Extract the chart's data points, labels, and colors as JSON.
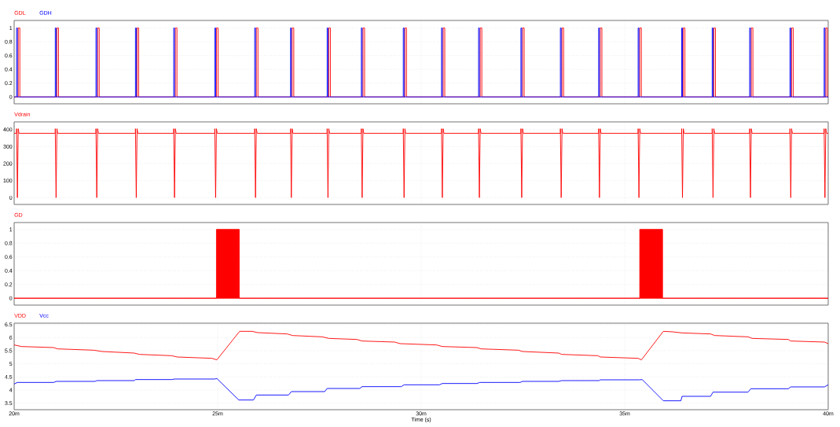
{
  "chart_data": [
    {
      "type": "line",
      "legend": "top left",
      "grid": true,
      "tick_labels": "y",
      "xlim": [
        20,
        40
      ],
      "xticks": [
        {
          "value": 20,
          "label": null
        },
        {
          "value": 25,
          "label": null
        },
        {
          "value": 30,
          "label": null
        },
        {
          "value": 35,
          "label": null
        },
        {
          "value": 40,
          "label": null
        }
      ],
      "ylim": [
        -0.1,
        1.11
      ],
      "yticks": [
        0,
        0.2,
        0.4,
        0.6,
        0.8,
        1
      ],
      "series": [
        {
          "name": "GDL",
          "color": "#ff0000",
          "x": [
            20,
            20.1,
            20.1,
            20.14,
            20.14,
            21.05,
            21.05,
            21.09,
            21.09,
            22.05,
            22.05,
            22.09,
            22.09,
            23.02,
            23.02,
            23.06,
            23.06,
            23.96,
            23.96,
            24,
            24,
            24.97,
            24.97,
            25.01,
            25.01,
            25.95,
            25.95,
            25.99,
            25.99,
            26.83,
            26.83,
            26.87,
            26.87,
            27.73,
            27.73,
            27.77,
            27.77,
            28.57,
            28.57,
            28.61,
            28.61,
            29.6,
            29.6,
            29.64,
            29.64,
            30.54,
            30.54,
            30.58,
            30.58,
            31.45,
            31.45,
            31.49,
            31.49,
            32.49,
            32.49,
            32.53,
            32.53,
            33.46,
            33.46,
            33.5,
            33.5,
            34.4,
            34.4,
            34.44,
            34.44,
            35.37,
            35.37,
            35.41,
            35.41,
            36.44,
            36.44,
            36.48,
            36.48,
            37.19,
            37.19,
            37.23,
            37.23,
            38.11,
            38.11,
            38.15,
            38.15,
            39.1,
            39.1,
            39.14,
            39.14,
            39.94,
            39.94,
            39.98,
            39.98,
            40
          ],
          "values": [
            0,
            0,
            1,
            1,
            0,
            0,
            1,
            1,
            0,
            0,
            1,
            1,
            0,
            0,
            1,
            1,
            0,
            0,
            1,
            1,
            0,
            0,
            1,
            1,
            0,
            0,
            1,
            1,
            0,
            0,
            1,
            1,
            0,
            0,
            1,
            1,
            0,
            0,
            1,
            1,
            0,
            0,
            1,
            1,
            0,
            0,
            1,
            1,
            0,
            0,
            1,
            1,
            0,
            0,
            1,
            1,
            0,
            0,
            1,
            1,
            0,
            0,
            1,
            1,
            0,
            0,
            1,
            1,
            0,
            0,
            1,
            1,
            0,
            0,
            1,
            1,
            0,
            0,
            1,
            1,
            0,
            0,
            1,
            1,
            0,
            0,
            1,
            1,
            0,
            0
          ]
        },
        {
          "name": "GDH",
          "color": "#0000ff",
          "x": [
            20,
            20.06,
            20.06,
            20.08,
            20.08,
            21.01,
            21.01,
            21.03,
            21.03,
            22.01,
            22.01,
            22.03,
            22.03,
            22.98,
            22.98,
            23,
            23,
            23.92,
            23.92,
            23.94,
            23.94,
            24.93,
            24.93,
            24.95,
            24.95,
            25.91,
            25.91,
            25.93,
            25.93,
            26.79,
            26.79,
            26.81,
            26.81,
            27.69,
            27.69,
            27.71,
            27.71,
            28.53,
            28.53,
            28.55,
            28.55,
            29.56,
            29.56,
            29.58,
            29.58,
            30.5,
            30.5,
            30.52,
            30.52,
            31.41,
            31.41,
            31.43,
            31.43,
            32.45,
            32.45,
            32.47,
            32.47,
            33.42,
            33.42,
            33.44,
            33.44,
            34.36,
            34.36,
            34.38,
            34.38,
            35.33,
            35.33,
            35.35,
            35.35,
            36.4,
            36.4,
            36.42,
            36.42,
            37.15,
            37.15,
            37.17,
            37.17,
            38.07,
            38.07,
            38.09,
            38.09,
            39.06,
            39.06,
            39.08,
            39.08,
            39.9,
            39.9,
            39.92,
            39.92,
            40
          ],
          "values": [
            0,
            0,
            1,
            1,
            0,
            0,
            1,
            1,
            0,
            0,
            1,
            1,
            0,
            0,
            1,
            1,
            0,
            0,
            1,
            1,
            0,
            0,
            1,
            1,
            0,
            0,
            1,
            1,
            0,
            0,
            1,
            1,
            0,
            0,
            1,
            1,
            0,
            0,
            1,
            1,
            0,
            0,
            1,
            1,
            0,
            0,
            1,
            1,
            0,
            0,
            1,
            1,
            0,
            0,
            1,
            1,
            0,
            0,
            1,
            1,
            0,
            0,
            1,
            1,
            0,
            0,
            1,
            1,
            0,
            0,
            1,
            1,
            0,
            0,
            1,
            1,
            0,
            0,
            1,
            1,
            0,
            0,
            1,
            1,
            0,
            0,
            1,
            1,
            0,
            0
          ]
        }
      ]
    },
    {
      "type": "line",
      "legend": "top left",
      "grid": true,
      "tick_labels": "y",
      "xlim": [
        20,
        40
      ],
      "xticks": [
        {
          "value": 20,
          "label": null
        },
        {
          "value": 25,
          "label": null
        },
        {
          "value": 30,
          "label": null
        },
        {
          "value": 35,
          "label": null
        },
        {
          "value": 40,
          "label": null
        }
      ],
      "ylim": [
        -40,
        445
      ],
      "yticks": [
        0,
        100,
        200,
        300,
        400
      ],
      "series": [
        {
          "name": "Vdrain",
          "color": "#ff0000",
          "x": [
            20,
            20.06,
            20.06,
            20.08,
            20.1,
            20.12,
            21.01,
            21.01,
            21.03,
            21.05,
            21.07,
            22.01,
            22.01,
            22.03,
            22.05,
            22.07,
            22.98,
            22.98,
            23,
            23.02,
            23.04,
            23.92,
            23.92,
            23.94,
            23.96,
            23.98,
            24.93,
            24.93,
            24.95,
            24.97,
            24.99,
            25.91,
            25.91,
            25.93,
            25.95,
            25.97,
            26.79,
            26.79,
            26.81,
            26.83,
            26.85,
            27.69,
            27.69,
            27.71,
            27.73,
            27.75,
            28.53,
            28.53,
            28.55,
            28.57,
            28.59,
            29.56,
            29.56,
            29.58,
            29.6,
            29.62,
            30.5,
            30.5,
            30.52,
            30.54,
            30.56,
            31.41,
            31.41,
            31.43,
            31.45,
            31.47,
            32.45,
            32.45,
            32.47,
            32.49,
            32.51,
            33.42,
            33.42,
            33.44,
            33.46,
            33.48,
            34.36,
            34.36,
            34.38,
            34.4,
            34.42,
            35.33,
            35.33,
            35.35,
            35.37,
            35.39,
            36.4,
            36.4,
            36.42,
            36.44,
            36.46,
            37.15,
            37.15,
            37.17,
            37.19,
            37.21,
            38.07,
            38.07,
            38.09,
            38.11,
            38.13,
            39.06,
            39.06,
            39.08,
            39.1,
            39.12,
            39.9,
            39.9,
            39.92,
            39.94,
            39.96,
            40
          ],
          "values": [
            378,
            378,
            405,
            0,
            405,
            378,
            378,
            405,
            0,
            405,
            378,
            378,
            405,
            0,
            405,
            378,
            378,
            405,
            0,
            405,
            378,
            378,
            405,
            0,
            405,
            378,
            378,
            405,
            0,
            405,
            378,
            378,
            405,
            0,
            405,
            378,
            378,
            405,
            0,
            405,
            378,
            378,
            405,
            0,
            405,
            378,
            378,
            405,
            0,
            405,
            378,
            378,
            405,
            0,
            405,
            378,
            378,
            405,
            0,
            405,
            378,
            378,
            405,
            0,
            405,
            378,
            378,
            405,
            0,
            405,
            378,
            378,
            405,
            0,
            405,
            378,
            378,
            405,
            0,
            405,
            378,
            378,
            405,
            0,
            405,
            378,
            378,
            405,
            0,
            405,
            378,
            378,
            405,
            0,
            405,
            378,
            378,
            405,
            0,
            405,
            378,
            378,
            405,
            0,
            405,
            378,
            378,
            405,
            0,
            405,
            378,
            378
          ]
        }
      ]
    },
    {
      "type": "area",
      "legend": "top left",
      "grid": true,
      "tick_labels": "y",
      "xlim": [
        20,
        40
      ],
      "xticks": [
        {
          "value": 20,
          "label": null
        },
        {
          "value": 25,
          "label": null
        },
        {
          "value": 30,
          "label": null
        },
        {
          "value": 35,
          "label": null
        },
        {
          "value": 40,
          "label": null
        }
      ],
      "ylim": [
        -0.1,
        1.1
      ],
      "yticks": [
        0,
        0.2,
        0.4,
        0.6,
        0.8,
        1
      ],
      "series": [
        {
          "name": "GD",
          "color": "#ff0000",
          "x": [
            20,
            24.97,
            24.97,
            25.53,
            25.53,
            35.37,
            35.37,
            35.93,
            35.93,
            40
          ],
          "values": [
            0,
            0,
            1,
            1,
            0,
            0,
            1,
            1,
            0,
            0
          ]
        }
      ]
    },
    {
      "type": "line",
      "legend": "top left",
      "grid": true,
      "xlabel": "Time (s)",
      "xlim": [
        20,
        40
      ],
      "xticks": [
        {
          "value": 20,
          "label": "20m"
        },
        {
          "value": 25,
          "label": "25m"
        },
        {
          "value": 30,
          "label": "30m"
        },
        {
          "value": 35,
          "label": "35m"
        },
        {
          "value": 40,
          "label": "40m"
        }
      ],
      "ylim": [
        3.25,
        6.55
      ],
      "yticks": [
        3.5,
        4,
        4.5,
        5,
        5.5,
        6,
        6.5
      ],
      "series": [
        {
          "name": "VDD",
          "color": "#ff0000",
          "x": [
            20,
            20.18,
            20.97,
            21.07,
            21.96,
            22.16,
            22.95,
            23.08,
            23.87,
            24.01,
            24.86,
            24.98,
            25.54,
            25.85,
            25.98,
            26.71,
            26.84,
            27.57,
            27.73,
            28.42,
            28.55,
            29.35,
            29.48,
            30.38,
            30.52,
            31.37,
            31.47,
            32.39,
            32.49,
            33.38,
            33.45,
            34.34,
            34.4,
            35.33,
            35.41,
            35.95,
            36.18,
            36.41,
            37.11,
            37.21,
            38.03,
            38.13,
            39.02,
            39.08,
            39.91,
            40
          ],
          "values": [
            5.72,
            5.66,
            5.62,
            5.57,
            5.52,
            5.47,
            5.41,
            5.36,
            5.31,
            5.26,
            5.21,
            5.15,
            6.24,
            6.24,
            6.19,
            6.14,
            6.08,
            6.03,
            5.97,
            5.93,
            5.87,
            5.83,
            5.77,
            5.72,
            5.66,
            5.62,
            5.57,
            5.52,
            5.47,
            5.41,
            5.36,
            5.31,
            5.26,
            5.21,
            5.15,
            6.24,
            6.22,
            6.18,
            6.14,
            6.08,
            6.03,
            5.97,
            5.93,
            5.87,
            5.83,
            5.77
          ]
        },
        {
          "name": "Vcc",
          "color": "#0000ff",
          "x": [
            20,
            20.08,
            20.97,
            21.04,
            21.99,
            22.03,
            22.95,
            22.98,
            23.87,
            23.94,
            24.93,
            24.98,
            25.52,
            25.88,
            25.95,
            26.74,
            26.81,
            27.63,
            27.69,
            28.49,
            28.55,
            29.51,
            29.58,
            30.45,
            30.52,
            31.37,
            31.44,
            32.43,
            32.49,
            33.38,
            33.45,
            34.37,
            34.4,
            35.36,
            35.43,
            35.95,
            36.38,
            36.41,
            37.11,
            37.17,
            38.03,
            38.1,
            39.02,
            39.08,
            39.91,
            40
          ],
          "values": [
            4.23,
            4.29,
            4.29,
            4.33,
            4.33,
            4.36,
            4.36,
            4.4,
            4.4,
            4.42,
            4.42,
            4.44,
            3.62,
            3.62,
            3.81,
            3.81,
            3.94,
            3.94,
            4.06,
            4.06,
            4.13,
            4.13,
            4.2,
            4.2,
            4.25,
            4.25,
            4.29,
            4.29,
            4.33,
            4.33,
            4.36,
            4.36,
            4.39,
            4.39,
            4.4,
            3.59,
            3.59,
            3.76,
            3.76,
            3.92,
            3.92,
            4.05,
            4.05,
            4.12,
            4.12,
            4.2
          ]
        }
      ]
    }
  ]
}
